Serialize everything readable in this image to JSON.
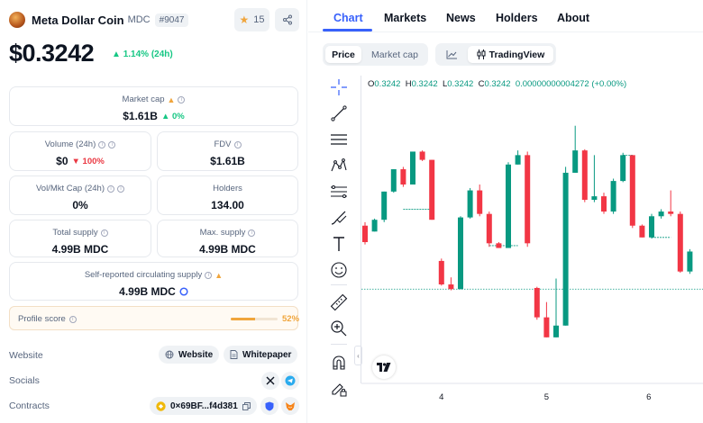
{
  "coin": {
    "name": "Meta Dollar Coin",
    "symbol": "MDC",
    "rank": "#9047",
    "watchlist_count": "15",
    "price": "$0.3242",
    "change_24h": "1.14% (24h)"
  },
  "stats": {
    "market_cap": {
      "label": "Market cap",
      "value": "$1.61B",
      "change": "0%"
    },
    "volume": {
      "label": "Volume (24h)",
      "value": "$0",
      "change": "100%"
    },
    "fdv": {
      "label": "FDV",
      "value": "$1.61B"
    },
    "vol_mkt_cap": {
      "label": "Vol/Mkt Cap (24h)",
      "value": "0%"
    },
    "holders": {
      "label": "Holders",
      "value": "134.00"
    },
    "total_supply": {
      "label": "Total supply",
      "value": "4.99B MDC"
    },
    "max_supply": {
      "label": "Max. supply",
      "value": "4.99B MDC"
    },
    "circulating_supply": {
      "label": "Self-reported circulating supply",
      "value": "4.99B MDC"
    }
  },
  "profile": {
    "label": "Profile score",
    "value": "52%",
    "fraction": 0.52
  },
  "links": {
    "website_label": "Website",
    "website_button": "Website",
    "whitepaper_button": "Whitepaper",
    "socials_label": "Socials",
    "contracts_label": "Contracts",
    "contract_address": "0×69BF...f4d381"
  },
  "tabs": [
    "Chart",
    "Markets",
    "News",
    "Holders",
    "About"
  ],
  "chart_controls": {
    "price": "Price",
    "market_cap": "Market cap",
    "tradingview": "TradingView"
  },
  "ohlc": {
    "o_label": "O",
    "o": "0.3242",
    "h_label": "H",
    "h": "0.3242",
    "l_label": "L",
    "l": "0.3242",
    "c_label": "C",
    "c": "0.3242",
    "change": "0.00000000004272 (+0.00%)"
  },
  "icons": {
    "tools": [
      "crosshair-icon",
      "trend-line-icon",
      "horizontal-lines-icon",
      "pattern-icon",
      "fib-icon",
      "brush-icon",
      "text-icon",
      "emoji-icon",
      "ruler-icon",
      "zoom-in-icon",
      "magnet-icon",
      "lock-draw-icon"
    ]
  },
  "colors": {
    "up": "#16c784",
    "down": "#ea3943",
    "candle_up": "#089981",
    "candle_down": "#f23645",
    "accent": "#3861fb"
  },
  "chart_data": {
    "type": "candlestick",
    "x_ticks": [
      "4",
      "5",
      "6"
    ],
    "candles": [
      {
        "o": 6,
        "h": 6.3,
        "l": 4.4,
        "c": 4.6
      },
      {
        "o": 5.5,
        "h": 6.6,
        "l": 5.5,
        "c": 6.5
      },
      {
        "o": 6.5,
        "h": 8.9,
        "l": 6.3,
        "c": 8.9
      },
      {
        "o": 8.9,
        "h": 10.8,
        "l": 8.8,
        "c": 10.8
      },
      {
        "o": 10.8,
        "h": 11.0,
        "l": 9.3,
        "c": 9.5
      },
      {
        "o": 9.5,
        "h": 12.3,
        "l": 9.5,
        "c": 12.3
      },
      {
        "o": 12.3,
        "h": 12.4,
        "l": 11.5,
        "c": 11.6
      },
      {
        "o": 11.6,
        "h": 11.6,
        "l": 6.5,
        "c": 6.5
      },
      {
        "o": 3.0,
        "h": 3.2,
        "l": 0.9,
        "c": 1.0
      },
      {
        "o": 1.0,
        "h": 1.6,
        "l": 0.5,
        "c": 0.6
      },
      {
        "o": 0.6,
        "h": 6.8,
        "l": 0.6,
        "c": 6.7
      },
      {
        "o": 6.7,
        "h": 9.2,
        "l": 6.6,
        "c": 9.0
      },
      {
        "o": 9.0,
        "h": 9.5,
        "l": 6.8,
        "c": 7.0
      },
      {
        "o": 7.0,
        "h": 7.2,
        "l": 4.2,
        "c": 4.5
      },
      {
        "o": 4.5,
        "h": 4.6,
        "l": 4.1,
        "c": 4.1
      },
      {
        "o": 4.1,
        "h": 11.4,
        "l": 4.1,
        "c": 11.2
      },
      {
        "o": 11.2,
        "h": 12.4,
        "l": 11.2,
        "c": 12.0
      },
      {
        "o": 12.0,
        "h": 12.3,
        "l": 4.2,
        "c": 4.5
      },
      {
        "o": 0.7,
        "h": 0.8,
        "l": -2.0,
        "c": -1.8
      },
      {
        "o": -1.8,
        "h": -0.5,
        "l": -3.5,
        "c": -3.5
      },
      {
        "o": -3.5,
        "h": 1.5,
        "l": -3.5,
        "c": -2.5
      },
      {
        "o": -2.5,
        "h": 11.0,
        "l": -2.5,
        "c": 10.5
      },
      {
        "o": 10.5,
        "h": 14.5,
        "l": 10.5,
        "c": 12.4
      },
      {
        "o": 12.4,
        "h": 12.5,
        "l": 8.0,
        "c": 8.2
      },
      {
        "o": 8.2,
        "h": 12.0,
        "l": 8.0,
        "c": 8.5
      },
      {
        "o": 8.5,
        "h": 8.8,
        "l": 7.0,
        "c": 7.2
      },
      {
        "o": 7.2,
        "h": 10.0,
        "l": 7.0,
        "c": 9.8
      },
      {
        "o": 9.8,
        "h": 12.2,
        "l": 9.7,
        "c": 12.0
      },
      {
        "o": 12.0,
        "h": 12.0,
        "l": 5.8,
        "c": 6.0
      },
      {
        "o": 6.0,
        "h": 6.1,
        "l": 5.0,
        "c": 5.0
      },
      {
        "o": 5.0,
        "h": 7.0,
        "l": 4.9,
        "c": 6.8
      },
      {
        "o": 6.8,
        "h": 7.4,
        "l": 6.6,
        "c": 7.2
      },
      {
        "o": 7.2,
        "h": 9.0,
        "l": 6.8,
        "c": 7.0
      },
      {
        "o": 7.0,
        "h": 7.2,
        "l": 2.0,
        "c": 2.1
      },
      {
        "o": 2.1,
        "h": 4.0,
        "l": 1.9,
        "c": 3.8
      }
    ],
    "segments": [
      {
        "from": 4,
        "to": 7,
        "price": 7.4
      },
      {
        "from": 13,
        "to": 16,
        "price": 4.3
      },
      {
        "from": 27,
        "to": 28,
        "price": 12.0
      },
      {
        "from": 30,
        "to": 32,
        "price": 5.0
      }
    ],
    "dotted_level": 0.6
  }
}
